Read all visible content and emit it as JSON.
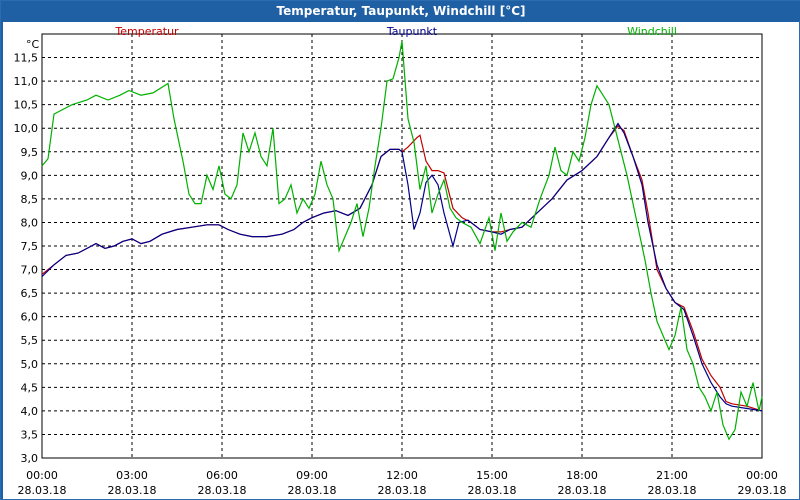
{
  "window": {
    "title": "Temperatur, Taupunkt, Windchill [°C]"
  },
  "chart_data": {
    "type": "line",
    "title": "Temperatur, Taupunkt, Windchill [°C]",
    "ylabel": "°C",
    "xlabel": "",
    "ylim": [
      3.0,
      12.0
    ],
    "xlim": [
      0,
      24
    ],
    "grid": true,
    "legend_placement": "top",
    "y_ticks": [
      "3,0",
      "3,5",
      "4,0",
      "4,5",
      "5,0",
      "5,5",
      "6,0",
      "6,5",
      "7,0",
      "7,5",
      "8,0",
      "8,5",
      "9,0",
      "9,5",
      "10,0",
      "10,5",
      "11,0",
      "11,5"
    ],
    "x_ticks": [
      {
        "time": "00:00",
        "date": "28.03.18"
      },
      {
        "time": "03:00",
        "date": "28.03.18"
      },
      {
        "time": "06:00",
        "date": "28.03.18"
      },
      {
        "time": "09:00",
        "date": "28.03.18"
      },
      {
        "time": "12:00",
        "date": "28.03.18"
      },
      {
        "time": "15:00",
        "date": "28.03.18"
      },
      {
        "time": "18:00",
        "date": "28.03.18"
      },
      {
        "time": "21:00",
        "date": "28.03.18"
      },
      {
        "time": "00:00",
        "date": "29.03.18"
      }
    ],
    "series": [
      {
        "name": "Temperatur",
        "color": "#c00000",
        "points": [
          [
            0,
            6.9
          ],
          [
            0.4,
            7.1
          ],
          [
            0.8,
            7.3
          ],
          [
            1.2,
            7.35
          ],
          [
            1.5,
            7.45
          ],
          [
            1.8,
            7.55
          ],
          [
            2.1,
            7.45
          ],
          [
            2.4,
            7.5
          ],
          [
            2.7,
            7.6
          ],
          [
            3.0,
            7.65
          ],
          [
            3.3,
            7.55
          ],
          [
            3.6,
            7.6
          ],
          [
            4.0,
            7.75
          ],
          [
            4.5,
            7.85
          ],
          [
            5.0,
            7.9
          ],
          [
            5.5,
            7.95
          ],
          [
            5.9,
            7.95
          ],
          [
            6.2,
            7.85
          ],
          [
            6.6,
            7.75
          ],
          [
            7.0,
            7.7
          ],
          [
            7.5,
            7.7
          ],
          [
            8.0,
            7.75
          ],
          [
            8.4,
            7.85
          ],
          [
            8.7,
            8.0
          ],
          [
            9.0,
            8.1
          ],
          [
            9.4,
            8.2
          ],
          [
            9.8,
            8.25
          ],
          [
            10.2,
            8.15
          ],
          [
            10.6,
            8.3
          ],
          [
            11.0,
            8.8
          ],
          [
            11.3,
            9.4
          ],
          [
            11.6,
            9.55
          ],
          [
            11.9,
            9.55
          ],
          [
            12.0,
            9.5
          ],
          [
            12.2,
            9.6
          ],
          [
            12.5,
            9.8
          ],
          [
            12.6,
            9.85
          ],
          [
            12.8,
            9.3
          ],
          [
            13.0,
            9.1
          ],
          [
            13.2,
            9.1
          ],
          [
            13.4,
            9.05
          ],
          [
            13.7,
            8.3
          ],
          [
            14.0,
            8.1
          ],
          [
            14.3,
            8.0
          ],
          [
            14.6,
            7.85
          ],
          [
            15.0,
            7.8
          ],
          [
            15.3,
            7.8
          ],
          [
            15.6,
            7.85
          ],
          [
            16.0,
            7.9
          ],
          [
            16.5,
            8.2
          ],
          [
            17.0,
            8.5
          ],
          [
            17.5,
            8.9
          ],
          [
            18.0,
            9.1
          ],
          [
            18.5,
            9.4
          ],
          [
            18.9,
            9.8
          ],
          [
            19.2,
            10.05
          ],
          [
            19.4,
            9.95
          ],
          [
            19.7,
            9.4
          ],
          [
            20.0,
            8.9
          ],
          [
            20.2,
            8.2
          ],
          [
            20.5,
            7.0
          ],
          [
            20.8,
            6.6
          ],
          [
            21.1,
            6.3
          ],
          [
            21.4,
            6.2
          ],
          [
            21.7,
            5.7
          ],
          [
            22.0,
            5.1
          ],
          [
            22.3,
            4.75
          ],
          [
            22.6,
            4.5
          ],
          [
            22.8,
            4.2
          ],
          [
            23.0,
            4.15
          ],
          [
            23.5,
            4.1
          ],
          [
            24.0,
            4.0
          ]
        ]
      },
      {
        "name": "Taupunkt",
        "color": "#00008b",
        "points": [
          [
            0,
            6.85
          ],
          [
            0.4,
            7.1
          ],
          [
            0.8,
            7.3
          ],
          [
            1.2,
            7.35
          ],
          [
            1.5,
            7.45
          ],
          [
            1.8,
            7.55
          ],
          [
            2.1,
            7.45
          ],
          [
            2.4,
            7.5
          ],
          [
            2.7,
            7.6
          ],
          [
            3.0,
            7.65
          ],
          [
            3.3,
            7.55
          ],
          [
            3.6,
            7.6
          ],
          [
            4.0,
            7.75
          ],
          [
            4.5,
            7.85
          ],
          [
            5.0,
            7.9
          ],
          [
            5.5,
            7.95
          ],
          [
            5.9,
            7.95
          ],
          [
            6.2,
            7.85
          ],
          [
            6.6,
            7.75
          ],
          [
            7.0,
            7.7
          ],
          [
            7.5,
            7.7
          ],
          [
            8.0,
            7.75
          ],
          [
            8.4,
            7.85
          ],
          [
            8.7,
            8.0
          ],
          [
            9.0,
            8.1
          ],
          [
            9.4,
            8.2
          ],
          [
            9.8,
            8.25
          ],
          [
            10.2,
            8.15
          ],
          [
            10.6,
            8.3
          ],
          [
            11.0,
            8.8
          ],
          [
            11.3,
            9.4
          ],
          [
            11.6,
            9.55
          ],
          [
            11.9,
            9.55
          ],
          [
            12.0,
            9.5
          ],
          [
            12.2,
            8.8
          ],
          [
            12.4,
            7.85
          ],
          [
            12.6,
            8.2
          ],
          [
            12.8,
            8.85
          ],
          [
            13.0,
            9.0
          ],
          [
            13.2,
            8.8
          ],
          [
            13.4,
            8.2
          ],
          [
            13.7,
            7.5
          ],
          [
            13.9,
            8.0
          ],
          [
            14.2,
            8.05
          ],
          [
            14.6,
            7.85
          ],
          [
            15.0,
            7.8
          ],
          [
            15.3,
            7.75
          ],
          [
            15.6,
            7.85
          ],
          [
            16.0,
            7.9
          ],
          [
            16.5,
            8.2
          ],
          [
            17.0,
            8.5
          ],
          [
            17.5,
            8.9
          ],
          [
            18.0,
            9.1
          ],
          [
            18.5,
            9.4
          ],
          [
            18.9,
            9.8
          ],
          [
            19.2,
            10.1
          ],
          [
            19.4,
            9.9
          ],
          [
            19.7,
            9.4
          ],
          [
            20.0,
            8.8
          ],
          [
            20.2,
            8.0
          ],
          [
            20.5,
            7.1
          ],
          [
            20.8,
            6.6
          ],
          [
            21.1,
            6.3
          ],
          [
            21.4,
            6.15
          ],
          [
            21.7,
            5.6
          ],
          [
            22.0,
            5.0
          ],
          [
            22.3,
            4.6
          ],
          [
            22.6,
            4.3
          ],
          [
            22.8,
            4.15
          ],
          [
            23.0,
            4.1
          ],
          [
            23.5,
            4.05
          ],
          [
            24.0,
            4.0
          ]
        ]
      },
      {
        "name": "Windchill",
        "color": "#00b000",
        "points": [
          [
            0,
            9.2
          ],
          [
            0.2,
            9.35
          ],
          [
            0.4,
            10.3
          ],
          [
            0.7,
            10.4
          ],
          [
            1.0,
            10.5
          ],
          [
            1.5,
            10.6
          ],
          [
            1.8,
            10.7
          ],
          [
            2.2,
            10.6
          ],
          [
            2.6,
            10.7
          ],
          [
            2.9,
            10.8
          ],
          [
            3.3,
            10.7
          ],
          [
            3.7,
            10.75
          ],
          [
            4.2,
            10.95
          ],
          [
            4.4,
            10.2
          ],
          [
            4.7,
            9.3
          ],
          [
            4.9,
            8.6
          ],
          [
            5.1,
            8.4
          ],
          [
            5.3,
            8.4
          ],
          [
            5.5,
            9.0
          ],
          [
            5.7,
            8.7
          ],
          [
            5.9,
            9.2
          ],
          [
            6.1,
            8.6
          ],
          [
            6.3,
            8.5
          ],
          [
            6.5,
            8.8
          ],
          [
            6.7,
            9.9
          ],
          [
            6.9,
            9.5
          ],
          [
            7.1,
            9.9
          ],
          [
            7.3,
            9.4
          ],
          [
            7.5,
            9.2
          ],
          [
            7.7,
            10.0
          ],
          [
            7.9,
            8.4
          ],
          [
            8.1,
            8.5
          ],
          [
            8.3,
            8.8
          ],
          [
            8.5,
            8.2
          ],
          [
            8.7,
            8.5
          ],
          [
            8.9,
            8.3
          ],
          [
            9.1,
            8.6
          ],
          [
            9.3,
            9.3
          ],
          [
            9.5,
            8.8
          ],
          [
            9.7,
            8.5
          ],
          [
            9.9,
            7.4
          ],
          [
            10.1,
            7.7
          ],
          [
            10.3,
            8.0
          ],
          [
            10.5,
            8.4
          ],
          [
            10.7,
            7.7
          ],
          [
            10.9,
            8.3
          ],
          [
            11.1,
            9.2
          ],
          [
            11.3,
            10.0
          ],
          [
            11.5,
            11.0
          ],
          [
            11.7,
            11.05
          ],
          [
            11.9,
            11.5
          ],
          [
            12.0,
            11.85
          ],
          [
            12.2,
            10.2
          ],
          [
            12.4,
            9.7
          ],
          [
            12.6,
            8.7
          ],
          [
            12.8,
            9.2
          ],
          [
            13.0,
            8.2
          ],
          [
            13.2,
            8.6
          ],
          [
            13.4,
            8.9
          ],
          [
            13.6,
            8.3
          ],
          [
            13.8,
            8.1
          ],
          [
            14.0,
            8.0
          ],
          [
            14.3,
            7.9
          ],
          [
            14.6,
            7.55
          ],
          [
            14.9,
            8.1
          ],
          [
            15.1,
            7.4
          ],
          [
            15.3,
            8.2
          ],
          [
            15.5,
            7.6
          ],
          [
            15.7,
            7.8
          ],
          [
            16.0,
            8.0
          ],
          [
            16.3,
            7.9
          ],
          [
            16.6,
            8.5
          ],
          [
            16.9,
            9.0
          ],
          [
            17.1,
            9.6
          ],
          [
            17.3,
            9.1
          ],
          [
            17.5,
            9.0
          ],
          [
            17.7,
            9.5
          ],
          [
            17.9,
            9.3
          ],
          [
            18.1,
            9.8
          ],
          [
            18.3,
            10.5
          ],
          [
            18.5,
            10.9
          ],
          [
            18.7,
            10.7
          ],
          [
            18.9,
            10.5
          ],
          [
            19.1,
            10.0
          ],
          [
            19.3,
            9.5
          ],
          [
            19.5,
            9.0
          ],
          [
            19.7,
            8.4
          ],
          [
            19.9,
            7.8
          ],
          [
            20.1,
            7.2
          ],
          [
            20.3,
            6.5
          ],
          [
            20.5,
            5.9
          ],
          [
            20.7,
            5.6
          ],
          [
            20.9,
            5.3
          ],
          [
            21.1,
            5.6
          ],
          [
            21.3,
            6.2
          ],
          [
            21.5,
            5.3
          ],
          [
            21.7,
            5.0
          ],
          [
            21.9,
            4.5
          ],
          [
            22.1,
            4.3
          ],
          [
            22.3,
            4.0
          ],
          [
            22.5,
            4.4
          ],
          [
            22.7,
            3.7
          ],
          [
            22.9,
            3.4
          ],
          [
            23.1,
            3.6
          ],
          [
            23.3,
            4.4
          ],
          [
            23.5,
            4.1
          ],
          [
            23.7,
            4.6
          ],
          [
            23.9,
            4.0
          ],
          [
            24.0,
            4.3
          ]
        ]
      }
    ]
  }
}
